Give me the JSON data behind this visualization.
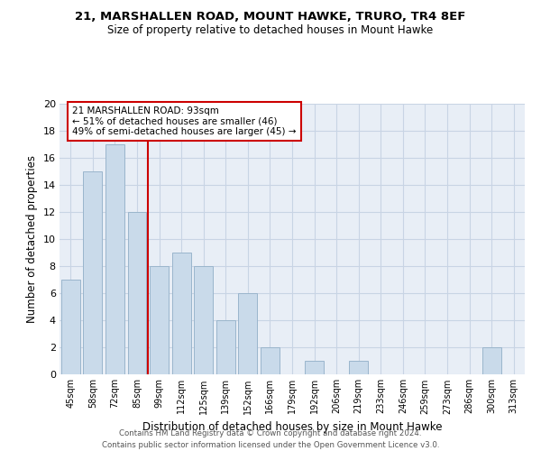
{
  "title": "21, MARSHALLEN ROAD, MOUNT HAWKE, TRURO, TR4 8EF",
  "subtitle": "Size of property relative to detached houses in Mount Hawke",
  "xlabel": "Distribution of detached houses by size in Mount Hawke",
  "ylabel": "Number of detached properties",
  "categories": [
    "45sqm",
    "58sqm",
    "72sqm",
    "85sqm",
    "99sqm",
    "112sqm",
    "125sqm",
    "139sqm",
    "152sqm",
    "166sqm",
    "179sqm",
    "192sqm",
    "206sqm",
    "219sqm",
    "233sqm",
    "246sqm",
    "259sqm",
    "273sqm",
    "286sqm",
    "300sqm",
    "313sqm"
  ],
  "values": [
    7,
    15,
    17,
    12,
    8,
    9,
    8,
    4,
    6,
    2,
    0,
    1,
    0,
    1,
    0,
    0,
    0,
    0,
    0,
    2,
    0
  ],
  "bar_color": "#c9daea",
  "bar_edge_color": "#9ab5cc",
  "vline_color": "#cc0000",
  "annotation_box_color": "#cc0000",
  "annotation_text_line1": "21 MARSHALLEN ROAD: 93sqm",
  "annotation_text_line2": "← 51% of detached houses are smaller (46)",
  "annotation_text_line3": "49% of semi-detached houses are larger (45) →",
  "ylim": [
    0,
    20
  ],
  "yticks": [
    0,
    2,
    4,
    6,
    8,
    10,
    12,
    14,
    16,
    18,
    20
  ],
  "grid_color": "#c8d4e4",
  "bg_color": "#e8eef6",
  "footer_line1": "Contains HM Land Registry data © Crown copyright and database right 2024.",
  "footer_line2": "Contains public sector information licensed under the Open Government Licence v3.0."
}
